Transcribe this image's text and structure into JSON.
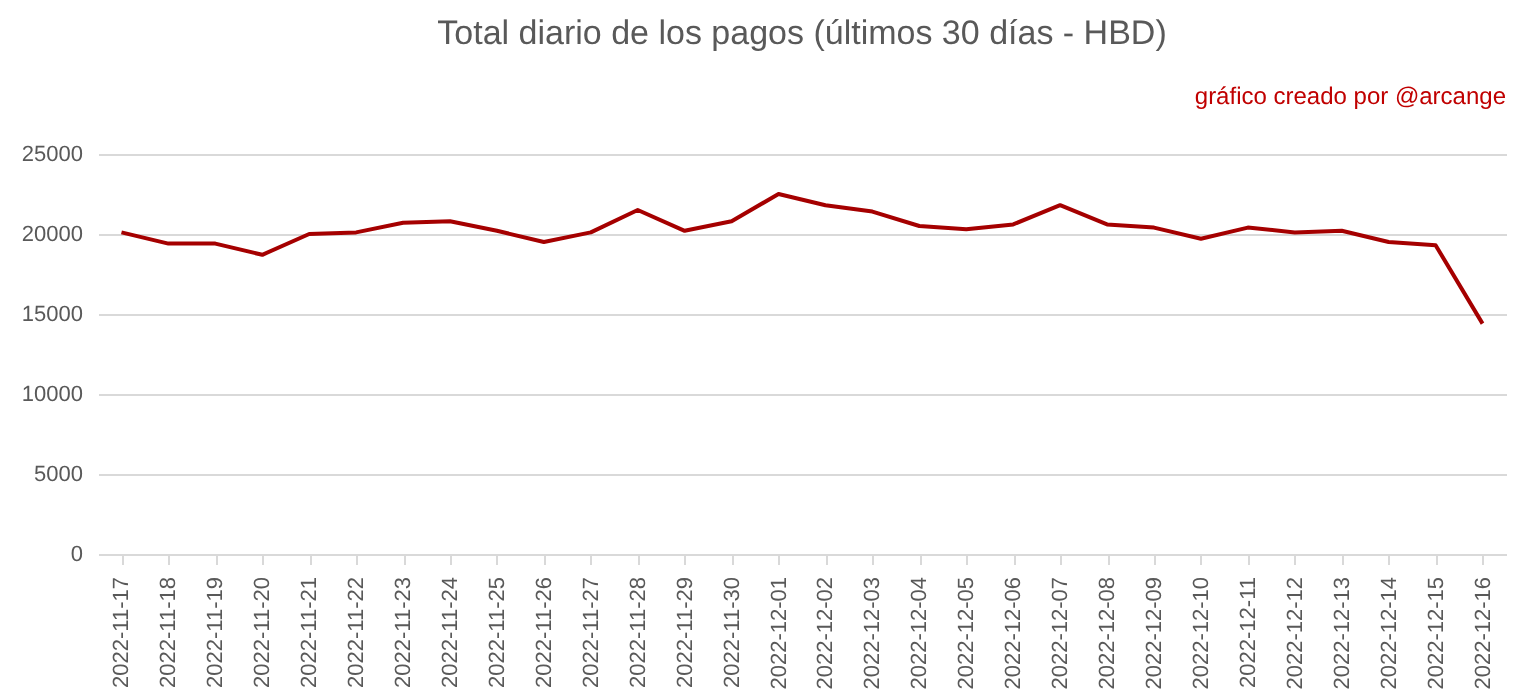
{
  "chart_data": {
    "type": "line",
    "title": "Total diario de los pagos (últimos 30 días - HBD)",
    "annotations": [
      "gráfico creado por @arcange"
    ],
    "categories": [
      "2022-11-17",
      "2022-11-18",
      "2022-11-19",
      "2022-11-20",
      "2022-11-21",
      "2022-11-22",
      "2022-11-23",
      "2022-11-24",
      "2022-11-25",
      "2022-11-26",
      "2022-11-27",
      "2022-11-28",
      "2022-11-29",
      "2022-11-30",
      "2022-12-01",
      "2022-12-02",
      "2022-12-03",
      "2022-12-04",
      "2022-12-05",
      "2022-12-06",
      "2022-12-07",
      "2022-12-08",
      "2022-12-09",
      "2022-12-10",
      "2022-12-11",
      "2022-12-12",
      "2022-12-13",
      "2022-12-14",
      "2022-12-15",
      "2022-12-16"
    ],
    "series": [
      {
        "color": "#a50000",
        "values": [
          20100,
          19400,
          19400,
          18700,
          20000,
          20100,
          20700,
          20800,
          20200,
          19500,
          20100,
          21500,
          20200,
          20800,
          22500,
          21800,
          21400,
          20500,
          20300,
          20600,
          21800,
          20600,
          20400,
          19700,
          20400,
          20100,
          20200,
          19500,
          19300,
          14400
        ]
      }
    ],
    "ylim": [
      0,
      25000
    ],
    "yticks": [
      0,
      5000,
      10000,
      15000,
      20000,
      25000
    ],
    "grid": "y",
    "marker": "none",
    "line_style": "solid"
  }
}
